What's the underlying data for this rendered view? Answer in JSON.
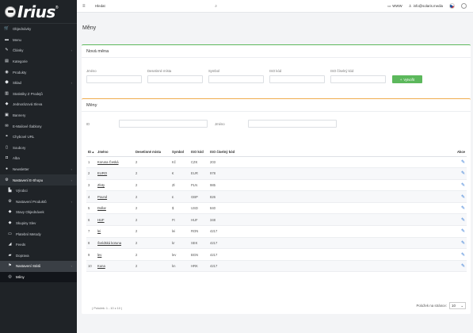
{
  "logo": {
    "text": "Irius",
    "reg": "®"
  },
  "sidebar": {
    "items": [
      {
        "label": "Objednávky",
        "icon": "cart-icon",
        "glyph": "🛒",
        "chev": false
      },
      {
        "label": "Menu",
        "icon": "folder-icon",
        "glyph": "▬",
        "chev": false
      },
      {
        "label": "Články",
        "icon": "pencil-icon",
        "glyph": "✎",
        "chev": true
      },
      {
        "label": "Kategorie",
        "icon": "list-icon",
        "glyph": "▤",
        "chev": false
      },
      {
        "label": "Produkty",
        "icon": "gift-icon",
        "glyph": "◉",
        "chev": false
      },
      {
        "label": "Sklad",
        "icon": "warehouse-icon",
        "glyph": "⬢",
        "chev": true
      },
      {
        "label": "Statistiky Z Prodejů",
        "icon": "chart-icon",
        "glyph": "▥",
        "chev": false
      },
      {
        "label": "Jednorázová Sleva",
        "icon": "tag-icon",
        "glyph": "◆",
        "chev": false
      },
      {
        "label": "Bannery",
        "icon": "image-icon",
        "glyph": "▣",
        "chev": false
      },
      {
        "label": "E-Mailové Šablony",
        "icon": "envelope-icon",
        "glyph": "✉",
        "chev": false
      },
      {
        "label": "Chybové URL",
        "icon": "link-icon",
        "glyph": "⚭",
        "chev": false
      },
      {
        "label": "Soubory",
        "icon": "file-icon",
        "glyph": "▯",
        "chev": false
      },
      {
        "label": "Alba",
        "icon": "camera-icon",
        "glyph": "◘",
        "chev": false
      },
      {
        "label": "Newsletter",
        "icon": "newsletter-icon",
        "glyph": "●",
        "chev": true
      },
      {
        "label": "Nastavení E-Shopu",
        "icon": "gear-icon",
        "glyph": "⚙",
        "chev": true,
        "active": true
      },
      {
        "label": "Výrobci",
        "icon": "factory-icon",
        "glyph": "▙",
        "sub": true
      },
      {
        "label": "Nastavení Produktů",
        "icon": "gear-icon",
        "glyph": "⚙",
        "sub": true,
        "chev": true
      },
      {
        "label": "Stavy Objednávek",
        "icon": "diamond-icon",
        "glyph": "◆",
        "sub": true
      },
      {
        "label": "Skupiny Slev",
        "icon": "tag-icon",
        "glyph": "◆",
        "sub": true
      },
      {
        "label": "Platební Metody",
        "icon": "credit-card-icon",
        "glyph": "▭",
        "sub": true
      },
      {
        "label": "Feeds",
        "icon": "rss-icon",
        "glyph": "◢",
        "sub": true
      },
      {
        "label": "Doprava",
        "icon": "truck-icon",
        "glyph": "▰",
        "sub": true
      },
      {
        "label": "Nastavení Států",
        "icon": "flag-icon",
        "glyph": "⚑",
        "sub": true,
        "chev": true,
        "subactive": true
      },
      {
        "label": "Měny",
        "icon": "currency-icon",
        "glyph": "◎",
        "sub": true,
        "current": true
      }
    ]
  },
  "topbar": {
    "search_placeholder": "Hledat",
    "www_label": "WWW",
    "user_email": "info@solaris.media"
  },
  "page": {
    "title": "Měny"
  },
  "new_currency": {
    "title": "Nová měna",
    "fields": {
      "name": "Jméno",
      "decimals": "Desetinné místa",
      "symbol": "Symbol",
      "iso": "ISO kód",
      "iso_num": "ISO číselný kód"
    },
    "create_label": "Vytvořit"
  },
  "list": {
    "title": "Měny",
    "filter_id": "ID",
    "filter_name": "Jméno",
    "columns": [
      "ID ▴",
      "Jméno",
      "Desetinné místa",
      "Symbol",
      "ISO kód",
      "ISO číselný kód",
      "Akce"
    ],
    "rows": [
      {
        "id": "1",
        "name": "Koruna Česká",
        "dec": "2",
        "sym": "Kč",
        "iso": "CZK",
        "num": "203"
      },
      {
        "id": "2",
        "name": "EURO",
        "dec": "2",
        "sym": "€",
        "iso": "EUR",
        "num": "978"
      },
      {
        "id": "3",
        "name": "Zloty",
        "dec": "2",
        "sym": "Zł",
        "iso": "PLN",
        "num": "985"
      },
      {
        "id": "4",
        "name": "Pound",
        "dec": "2",
        "sym": "£",
        "iso": "GBP",
        "num": "826"
      },
      {
        "id": "5",
        "name": "Dollar",
        "dec": "2",
        "sym": "$",
        "iso": "USD",
        "num": "840"
      },
      {
        "id": "6",
        "name": "HUF",
        "dec": "2",
        "sym": "Ft",
        "iso": "HUF",
        "num": "348"
      },
      {
        "id": "7",
        "name": "lei",
        "dec": "2",
        "sym": "lei",
        "iso": "RON",
        "num": "4217"
      },
      {
        "id": "8",
        "name": "Švédská koruna",
        "dec": "2",
        "sym": "kr",
        "iso": "SEK",
        "num": "4217"
      },
      {
        "id": "9",
        "name": "lev",
        "dec": "2",
        "sym": "lev",
        "iso": "BGN",
        "num": "4217"
      },
      {
        "id": "10",
        "name": "Kuna",
        "dec": "2",
        "sym": "kn",
        "iso": "HRK",
        "num": "4217"
      }
    ],
    "pager_info": "( Položek: 1 - 10 z 10 )",
    "per_page_label": "Položek na stránce:",
    "per_page_value": "10"
  },
  "colors": {
    "sidebar": "#1f2327",
    "accent_green": "#5cb85c",
    "accent_orange": "#f0ad4e",
    "edit_blue": "#2a73d2"
  }
}
